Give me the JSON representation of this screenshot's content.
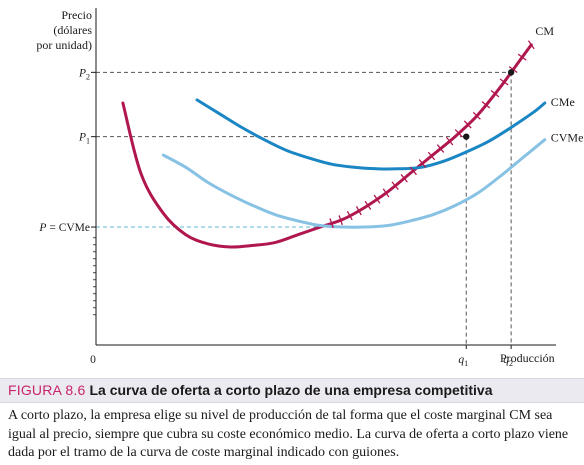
{
  "figure": {
    "number": "FIGURA 8.6",
    "title": "La curva de oferta a corto plazo de una empresa competitiva",
    "caption": "A corto plazo, la empresa elige su nivel de producción de tal forma que el coste marginal CM sea igual al precio, siempre que cubra su coste económico medio. La curva de oferta a corto plazo viene dada por el tramo de la curva de coste marginal indicado con guiones."
  },
  "chart_data": {
    "type": "line",
    "title": "",
    "ylabel_lines": [
      "Precio",
      "(dólares",
      "por unidad)"
    ],
    "xlabel": "Producción",
    "origin_label": "0",
    "y_ticks": [
      {
        "label": "P",
        "sub": "2",
        "suffix": "",
        "value": 8.9
      },
      {
        "label": "P",
        "sub": "1",
        "suffix": "",
        "value": 6.8
      },
      {
        "label": "P",
        "sub": "",
        "suffix": " = CVMe",
        "value": 3.85
      }
    ],
    "x_ticks": [
      {
        "label": "q",
        "sub": "1",
        "value": 16.5
      },
      {
        "label": "q",
        "sub": "2",
        "value": 18.5
      }
    ],
    "xlim": [
      0,
      20.5
    ],
    "ylim": [
      0,
      11
    ],
    "colors": {
      "cm": "#b0174f",
      "cme": "#1a86c4",
      "cvme": "#87c2e4",
      "guide": "#555555",
      "p_cvme_guide": "#5bbbd6"
    },
    "series": [
      {
        "name": "CM",
        "color_key": "cm",
        "x": [
          1.2,
          2.0,
          3.0,
          4.0,
          5.0,
          6.0,
          7.0,
          8.0,
          9.0,
          10.0,
          11.0,
          12.0,
          13.0,
          14.0,
          15.0,
          16.0,
          17.0,
          18.0,
          19.0,
          19.4
        ],
        "y": [
          7.9,
          5.6,
          4.3,
          3.6,
          3.3,
          3.2,
          3.25,
          3.35,
          3.6,
          3.85,
          4.1,
          4.5,
          5.0,
          5.6,
          6.2,
          6.8,
          7.5,
          8.4,
          9.4,
          9.8
        ]
      },
      {
        "name": "CMe",
        "color_key": "cme",
        "x": [
          4.5,
          5.5,
          6.5,
          7.5,
          8.5,
          9.5,
          10.5,
          11.5,
          12.5,
          13.5,
          14.5,
          15.5,
          16.5,
          17.5,
          18.5,
          19.5,
          20.0
        ],
        "y": [
          8.0,
          7.55,
          7.1,
          6.7,
          6.35,
          6.1,
          5.9,
          5.8,
          5.75,
          5.75,
          5.8,
          6.0,
          6.3,
          6.65,
          7.1,
          7.6,
          7.9
        ]
      },
      {
        "name": "CVMe",
        "color_key": "cvme",
        "x": [
          3.0,
          4.0,
          5.0,
          6.0,
          7.0,
          8.0,
          9.0,
          10.0,
          11.0,
          12.0,
          13.0,
          14.0,
          15.0,
          16.0,
          17.0,
          18.0,
          19.0,
          20.0
        ],
        "y": [
          6.2,
          5.8,
          5.3,
          4.9,
          4.55,
          4.25,
          4.05,
          3.9,
          3.85,
          3.85,
          3.9,
          4.05,
          4.25,
          4.55,
          4.95,
          5.5,
          6.1,
          6.7
        ]
      }
    ],
    "supply_segment": {
      "series": "CM",
      "from_x": 10.5,
      "to_x": 19.4
    },
    "points": [
      {
        "x": 16.5,
        "y": 6.8
      },
      {
        "x": 18.5,
        "y": 8.9
      }
    ]
  }
}
